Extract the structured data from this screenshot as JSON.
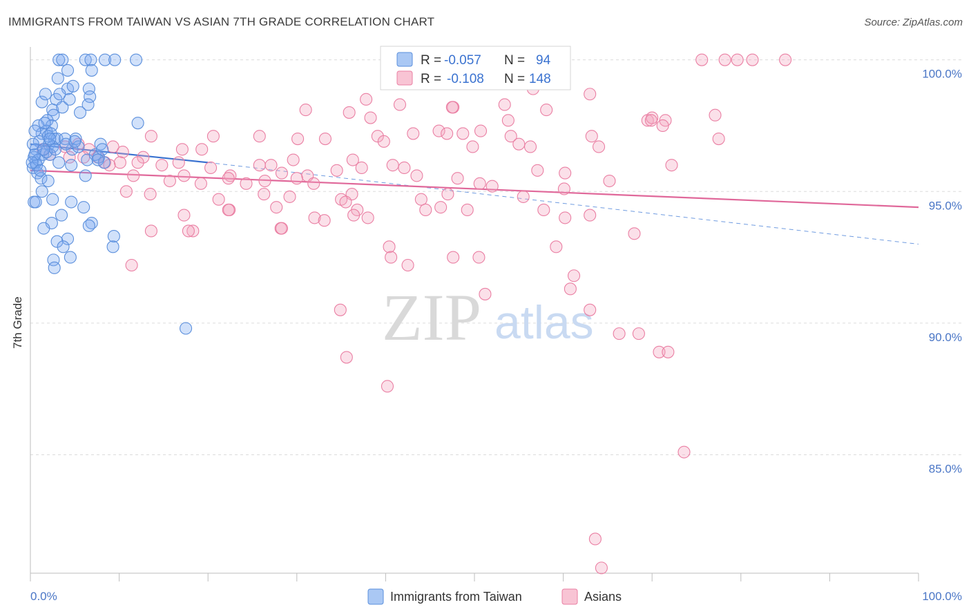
{
  "title": "IMMIGRANTS FROM TAIWAN VS ASIAN 7TH GRADE CORRELATION CHART",
  "source": "Source: ZipAtlas.com",
  "watermark": {
    "zip": "ZIP",
    "atlas": "atlas"
  },
  "chart_data": {
    "type": "scatter",
    "title": "IMMIGRANTS FROM TAIWAN VS ASIAN 7TH GRADE CORRELATION CHART",
    "xlabel": "",
    "ylabel": "7th Grade",
    "xlim": [
      0,
      100
    ],
    "ylim": [
      80.5,
      100.7
    ],
    "x_tick_labels": [
      "0.0%",
      "100.0%"
    ],
    "y_ticks": [
      85,
      90,
      95,
      100
    ],
    "y_tick_labels": [
      "85.0%",
      "90.0%",
      "95.0%",
      "100.0%"
    ],
    "grid": true,
    "legend_position": "top-center",
    "series": [
      {
        "name": "Immigrants from Taiwan",
        "color": "#7aaaf0",
        "edge": "#5b8fdc",
        "R": "-0.057",
        "N": "94",
        "trend": {
          "x": [
            0,
            20
          ],
          "y": [
            96.8,
            96.1
          ],
          "color": "#3a72d0"
        },
        "trend_extended": {
          "x": [
            20,
            100
          ],
          "y": [
            96.1,
            93.0
          ]
        },
        "points": [
          [
            3.2,
            100
          ],
          [
            3.6,
            100
          ],
          [
            6.2,
            100
          ],
          [
            6.8,
            100
          ],
          [
            8.4,
            100
          ],
          [
            9.5,
            100
          ],
          [
            11.9,
            100
          ],
          [
            4.2,
            99.6
          ],
          [
            6.9,
            99.6
          ],
          [
            3.1,
            99.3
          ],
          [
            4.2,
            98.9
          ],
          [
            4.8,
            99
          ],
          [
            6.6,
            98.9
          ],
          [
            6.7,
            98.6
          ],
          [
            1.3,
            98.4
          ],
          [
            2.9,
            98.5
          ],
          [
            6.5,
            98.3
          ],
          [
            1.7,
            98.7
          ],
          [
            2.5,
            98.1
          ],
          [
            3.6,
            98.2
          ],
          [
            5.6,
            98
          ],
          [
            2.6,
            97.9
          ],
          [
            1.9,
            97.7
          ],
          [
            2.4,
            97.5
          ],
          [
            0.9,
            97.5
          ],
          [
            1.8,
            97.3
          ],
          [
            12.1,
            97.6
          ],
          [
            1.3,
            97.2
          ],
          [
            2.0,
            97.1
          ],
          [
            2.7,
            97.0
          ],
          [
            3.0,
            97.0
          ],
          [
            0.5,
            97.3
          ],
          [
            5.1,
            97.0
          ],
          [
            1.0,
            96.9
          ],
          [
            2.1,
            96.8
          ],
          [
            2.5,
            96.7
          ],
          [
            0.6,
            96.6
          ],
          [
            4.7,
            96.6
          ],
          [
            7.9,
            96.8
          ],
          [
            1.4,
            96.4
          ],
          [
            2.2,
            96.4
          ],
          [
            1.8,
            96.5
          ],
          [
            0.4,
            96.3
          ],
          [
            0.6,
            96.1
          ],
          [
            3.2,
            96.1
          ],
          [
            4.6,
            96.0
          ],
          [
            6.4,
            96.2
          ],
          [
            7.7,
            96.3
          ],
          [
            8.3,
            96.1
          ],
          [
            0.3,
            95.9
          ],
          [
            0.8,
            95.7
          ],
          [
            1.2,
            95.5
          ],
          [
            2.0,
            95.4
          ],
          [
            6.2,
            95.6
          ],
          [
            1.3,
            95.0
          ],
          [
            2.5,
            94.7
          ],
          [
            0.4,
            94.6
          ],
          [
            0.6,
            94.6
          ],
          [
            6.0,
            94.4
          ],
          [
            3.5,
            94.1
          ],
          [
            4.6,
            94.6
          ],
          [
            6.9,
            93.8
          ],
          [
            2.4,
            93.8
          ],
          [
            1.5,
            93.6
          ],
          [
            4.2,
            93.2
          ],
          [
            3.0,
            93.1
          ],
          [
            9.4,
            93.3
          ],
          [
            3.7,
            92.9
          ],
          [
            9.3,
            92.9
          ],
          [
            4.5,
            92.5
          ],
          [
            2.6,
            92.4
          ],
          [
            2.7,
            92.1
          ],
          [
            17.5,
            89.8
          ],
          [
            0.7,
            96.0
          ],
          [
            1.6,
            97.6
          ],
          [
            2.3,
            97.2
          ],
          [
            3.9,
            97.0
          ],
          [
            5.4,
            96.7
          ],
          [
            0.9,
            96.2
          ],
          [
            1.1,
            95.8
          ],
          [
            0.5,
            96.4
          ],
          [
            2.8,
            96.6
          ],
          [
            6.6,
            93.7
          ],
          [
            3.3,
            98.7
          ],
          [
            4.4,
            98.5
          ],
          [
            7.3,
            96.4
          ],
          [
            0.3,
            96.8
          ],
          [
            1.5,
            96.6
          ],
          [
            0.2,
            96.1
          ],
          [
            2.2,
            97.0
          ],
          [
            4.0,
            96.8
          ],
          [
            5.0,
            96.9
          ],
          [
            7.6,
            96.2
          ],
          [
            8.1,
            96.6
          ]
        ]
      },
      {
        "name": "Asians",
        "color": "#f4a7c0",
        "edge": "#ea7fa3",
        "R": "-0.108",
        "N": "148",
        "trend": {
          "x": [
            0,
            100
          ],
          "y": [
            95.8,
            94.4
          ],
          "color": "#e0689a"
        },
        "points": [
          [
            75.6,
            100
          ],
          [
            78.2,
            100
          ],
          [
            79.6,
            100
          ],
          [
            81.3,
            100
          ],
          [
            85.0,
            100
          ],
          [
            56.6,
            98.9
          ],
          [
            63.0,
            98.7
          ],
          [
            37.8,
            98.5
          ],
          [
            41.6,
            98.3
          ],
          [
            47.6,
            98.2
          ],
          [
            53.4,
            98.3
          ],
          [
            58.1,
            98.1
          ],
          [
            31.0,
            98.1
          ],
          [
            35.9,
            98.0
          ],
          [
            38.3,
            97.8
          ],
          [
            47.5,
            98.2
          ],
          [
            77.1,
            97.9
          ],
          [
            69.5,
            97.7
          ],
          [
            71.5,
            97.7
          ],
          [
            53.8,
            97.7
          ],
          [
            46.0,
            97.3
          ],
          [
            43.1,
            97.2
          ],
          [
            50.7,
            97.3
          ],
          [
            54.1,
            97.1
          ],
          [
            63.2,
            97.1
          ],
          [
            77.5,
            97.0
          ],
          [
            71.2,
            97.5
          ],
          [
            70.0,
            97.8
          ],
          [
            13.6,
            97.1
          ],
          [
            20.6,
            97.1
          ],
          [
            25.8,
            97.1
          ],
          [
            30.1,
            97.0
          ],
          [
            33.2,
            97.0
          ],
          [
            39.1,
            97.1
          ],
          [
            39.8,
            96.9
          ],
          [
            46.9,
            97.2
          ],
          [
            48.7,
            97.2
          ],
          [
            69.9,
            97.7
          ],
          [
            3.9,
            96.7
          ],
          [
            5.4,
            96.8
          ],
          [
            6.6,
            96.6
          ],
          [
            9.3,
            96.7
          ],
          [
            10.4,
            96.5
          ],
          [
            17.1,
            96.6
          ],
          [
            19.3,
            96.6
          ],
          [
            25.8,
            96.0
          ],
          [
            27.1,
            96.0
          ],
          [
            29.6,
            96.2
          ],
          [
            36.3,
            96.2
          ],
          [
            49.8,
            96.7
          ],
          [
            55.0,
            96.8
          ],
          [
            56.3,
            96.7
          ],
          [
            64.0,
            96.7
          ],
          [
            7.6,
            96.3
          ],
          [
            8.4,
            96.1
          ],
          [
            10.1,
            96.1
          ],
          [
            12.7,
            96.3
          ],
          [
            14.8,
            96.0
          ],
          [
            16.7,
            96.1
          ],
          [
            20.3,
            95.9
          ],
          [
            22.5,
            95.6
          ],
          [
            28.3,
            95.7
          ],
          [
            31.2,
            95.6
          ],
          [
            34.5,
            95.8
          ],
          [
            37.3,
            95.9
          ],
          [
            42.1,
            95.9
          ],
          [
            57.1,
            95.8
          ],
          [
            60.2,
            95.7
          ],
          [
            65.2,
            95.4
          ],
          [
            72.2,
            96.0
          ],
          [
            11.6,
            95.6
          ],
          [
            15.7,
            95.4
          ],
          [
            17.3,
            95.6
          ],
          [
            19.2,
            95.3
          ],
          [
            22.3,
            95.5
          ],
          [
            24.3,
            95.3
          ],
          [
            26.4,
            95.4
          ],
          [
            30.0,
            95.5
          ],
          [
            43.5,
            95.6
          ],
          [
            48.1,
            95.5
          ],
          [
            50.6,
            95.3
          ],
          [
            52.0,
            95.2
          ],
          [
            60.1,
            95.1
          ],
          [
            10.8,
            95.0
          ],
          [
            13.5,
            94.9
          ],
          [
            21.2,
            94.7
          ],
          [
            26.3,
            94.9
          ],
          [
            29.2,
            94.8
          ],
          [
            35.0,
            94.7
          ],
          [
            36.2,
            94.9
          ],
          [
            44.0,
            94.7
          ],
          [
            47.0,
            94.9
          ],
          [
            55.5,
            94.8
          ],
          [
            22.4,
            94.3
          ],
          [
            27.7,
            94.4
          ],
          [
            35.5,
            94.6
          ],
          [
            36.8,
            94.3
          ],
          [
            46.2,
            94.4
          ],
          [
            57.8,
            94.3
          ],
          [
            17.3,
            94.1
          ],
          [
            18.3,
            93.5
          ],
          [
            28.2,
            93.6
          ],
          [
            22.3,
            94.3
          ],
          [
            32.0,
            94.0
          ],
          [
            33.1,
            93.9
          ],
          [
            36.4,
            94.1
          ],
          [
            44.5,
            94.3
          ],
          [
            49.2,
            94.3
          ],
          [
            60.2,
            94.0
          ],
          [
            63.0,
            94.1
          ],
          [
            68.0,
            93.4
          ],
          [
            13.6,
            93.5
          ],
          [
            17.8,
            93.5
          ],
          [
            28.3,
            93.6
          ],
          [
            40.4,
            92.9
          ],
          [
            47.6,
            92.5
          ],
          [
            40.6,
            92.5
          ],
          [
            59.2,
            92.9
          ],
          [
            50.5,
            92.5
          ],
          [
            11.4,
            92.2
          ],
          [
            42.5,
            92.2
          ],
          [
            61.2,
            91.8
          ],
          [
            60.8,
            91.3
          ],
          [
            51.2,
            91.1
          ],
          [
            63.0,
            90.5
          ],
          [
            34.9,
            90.5
          ],
          [
            66.3,
            89.6
          ],
          [
            68.5,
            89.6
          ],
          [
            70.8,
            88.9
          ],
          [
            71.8,
            88.9
          ],
          [
            35.6,
            88.7
          ],
          [
            40.2,
            87.6
          ],
          [
            73.6,
            85.1
          ],
          [
            63.6,
            81.8
          ],
          [
            64.3,
            80.7
          ],
          [
            1.4,
            96.6
          ],
          [
            2.2,
            96.4
          ],
          [
            4.4,
            96.3
          ],
          [
            6.0,
            96.3
          ],
          [
            8.9,
            96.0
          ],
          [
            12.1,
            96.1
          ],
          [
            40.8,
            96.0
          ],
          [
            38.0,
            94.0
          ],
          [
            31.9,
            95.3
          ]
        ]
      }
    ]
  },
  "legend": {
    "row1": {
      "r_label": "R = ",
      "r_value": "-0.057",
      "n_label": "N = ",
      "n_value": "94"
    },
    "row2": {
      "r_label": "R = ",
      "r_value": "-0.108",
      "n_label": "N = ",
      "n_value": "148"
    }
  },
  "bottom_legend": {
    "taiwan": "Immigrants from Taiwan",
    "asians": "Asians"
  }
}
